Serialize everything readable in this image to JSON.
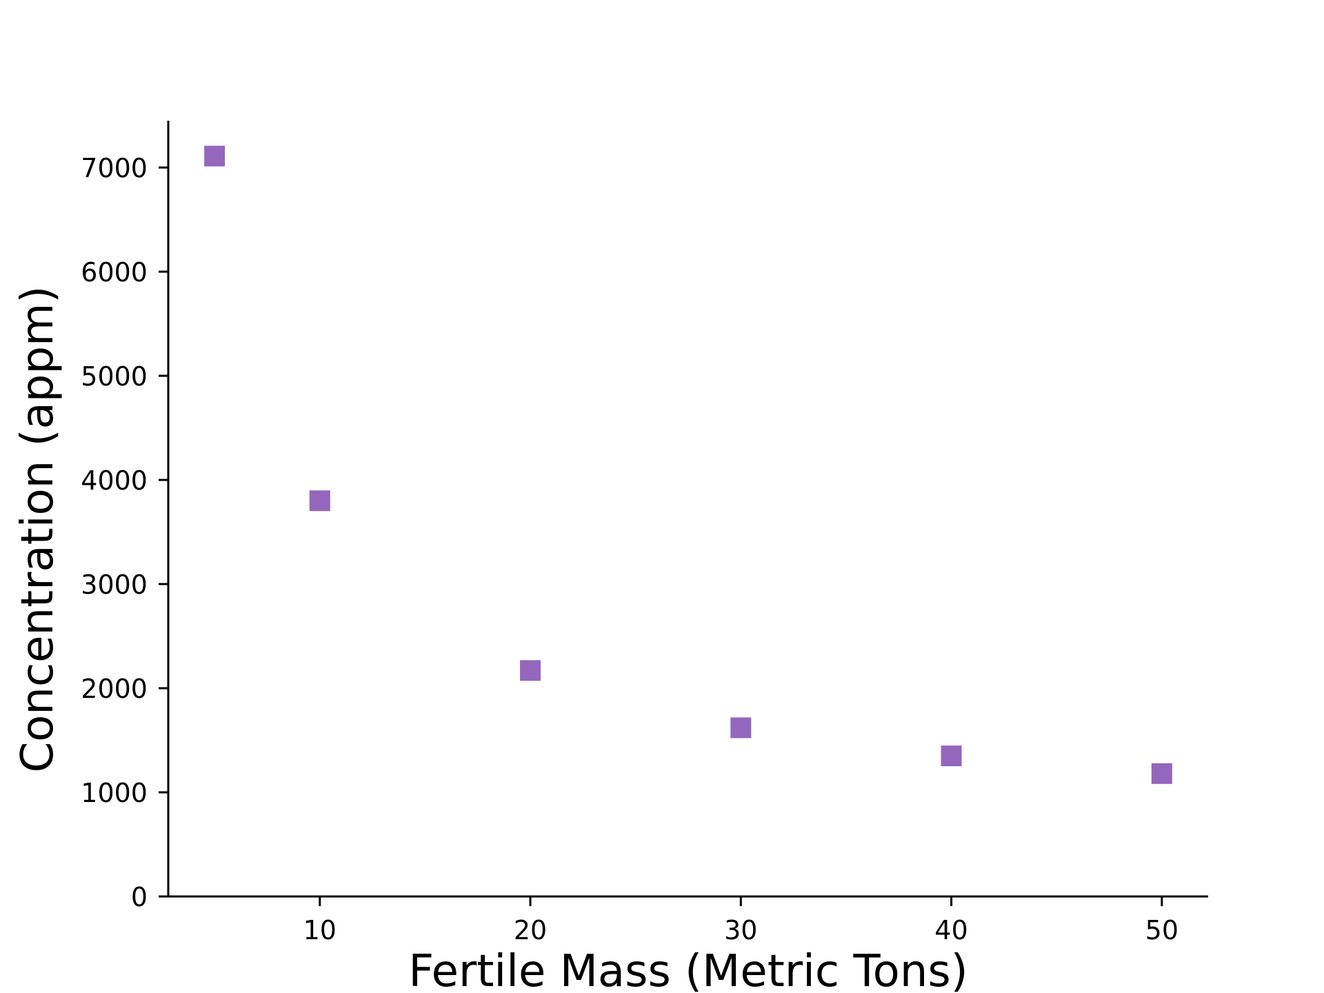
{
  "chart_data": {
    "type": "scatter",
    "title": "",
    "xlabel": "Fertile Mass (Metric Tons)",
    "ylabel": "Concentration (appm)",
    "xlim": [
      2.8,
      52.2
    ],
    "ylim": [
      0,
      7450
    ],
    "xticks": [
      10,
      20,
      30,
      40,
      50
    ],
    "yticks": [
      0,
      1000,
      2000,
      3000,
      4000,
      5000,
      6000,
      7000
    ],
    "grid": false,
    "legend": "none",
    "marker": "square",
    "color": "#9467bd",
    "series": [
      {
        "x": [
          5,
          10,
          20,
          30,
          40,
          50
        ],
        "y": [
          7110,
          3800,
          2170,
          1620,
          1350,
          1180
        ]
      }
    ]
  }
}
